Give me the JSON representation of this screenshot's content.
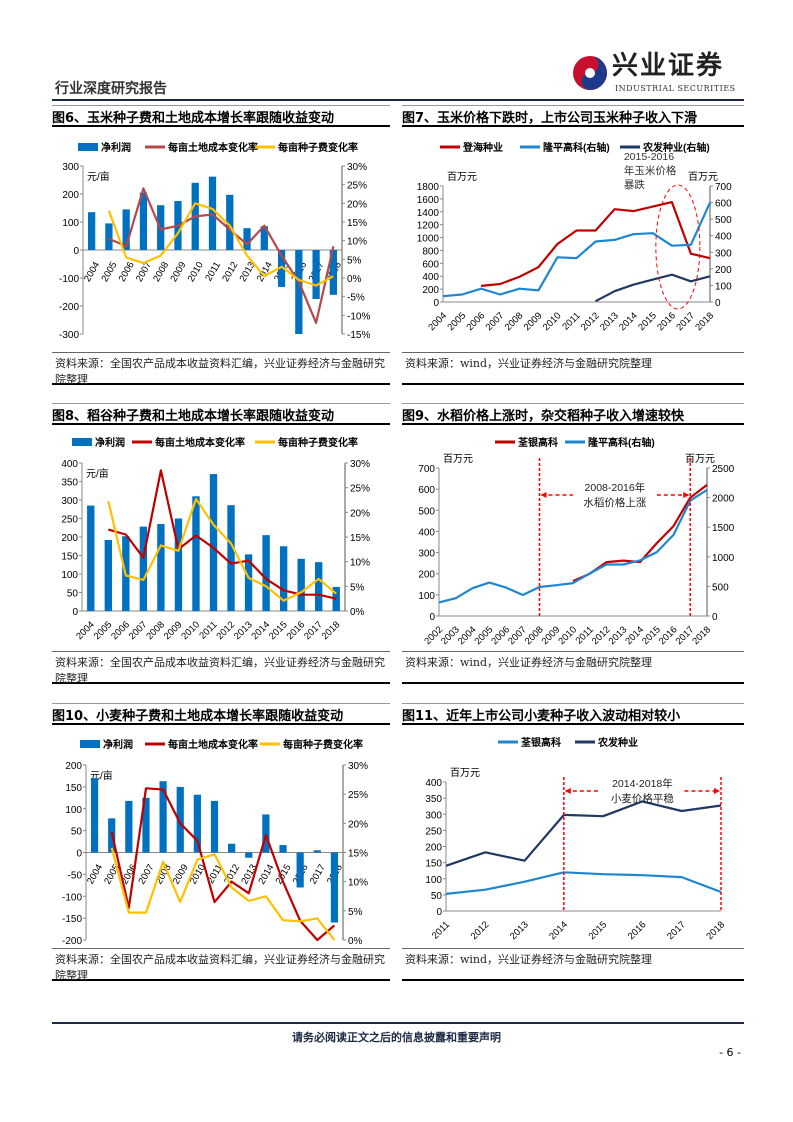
{
  "header": {
    "title": "行业深度研究报告",
    "logo_cn": "兴业证券",
    "logo_en": "INDUSTRIAL SECURITIES"
  },
  "footer": {
    "disclaimer": "请务必阅读正文之后的信息披露和重要声明",
    "page": "- 6 -"
  },
  "colors": {
    "bar": "#0070c0",
    "land_brown": "#b5484a",
    "red": "#c00000",
    "yellow": "#ffc000",
    "light_blue": "#1f86d0",
    "navy": "#1f3864",
    "annotation": "#ff0000"
  },
  "figures": [
    {
      "title": "图6、玉米种子费和土地成本增长率跟随收益变动",
      "source": "资料来源：全国农产品成本收益资料汇编，兴业证券经济与金融研究院整理",
      "chart_data": {
        "type": "bar+line",
        "categories": [
          "2004",
          "2005",
          "2006",
          "2007",
          "2008",
          "2009",
          "2010",
          "2011",
          "2012",
          "2013",
          "2014",
          "2015",
          "2016",
          "2017",
          "2018"
        ],
        "left_unit": "元/亩",
        "left_ticks": [
          "-300",
          "-200",
          "-100",
          "0",
          "100",
          "200",
          "300"
        ],
        "ylim": [
          -300,
          300
        ],
        "right_ticks": [
          "-15%",
          "-10%",
          "-5%",
          "0%",
          "5%",
          "10%",
          "15%",
          "20%",
          "25%",
          "30%"
        ],
        "y2lim": [
          -15,
          30
        ],
        "series": [
          {
            "name": "净利润",
            "kind": "bar",
            "axis": "left",
            "color": "#0070c0",
            "values": [
              135,
              95,
              145,
              205,
              160,
              175,
              240,
              262,
              197,
              78,
              85,
              -132,
              -300,
              -175,
              -160
            ]
          },
          {
            "name": "每亩土地成本变化率",
            "kind": "line",
            "axis": "right",
            "color": "#b5484a",
            "values": [
              null,
              10.5,
              8.5,
              24,
              13,
              14,
              16.5,
              17,
              13,
              9,
              14,
              6,
              -1,
              -12,
              8.5
            ]
          },
          {
            "name": "每亩种子费变化率",
            "kind": "line",
            "axis": "right",
            "color": "#ffc000",
            "values": [
              null,
              18,
              5.5,
              4,
              6,
              12,
              20,
              18.5,
              14,
              6,
              0.5,
              3,
              -0.5,
              -2,
              0.5
            ]
          }
        ]
      }
    },
    {
      "title": "图7、玉米价格下跌时，上市公司玉米种子收入下滑",
      "source": "资料来源：wind，兴业证券经济与金融研究院整理",
      "chart_data": {
        "type": "line",
        "categories": [
          "2004",
          "2005",
          "2006",
          "2007",
          "2008",
          "2009",
          "2010",
          "2011",
          "2012",
          "2013",
          "2014",
          "2015",
          "2016",
          "2017",
          "2018"
        ],
        "left_unit": "百万元",
        "right_unit": "百万元",
        "left_ticks": [
          "0",
          "200",
          "400",
          "600",
          "800",
          "1000",
          "1200",
          "1400",
          "1600",
          "1800"
        ],
        "ylim": [
          0,
          1800
        ],
        "right_ticks": [
          "0",
          "100",
          "200",
          "300",
          "400",
          "500",
          "600",
          "700"
        ],
        "y2lim": [
          0,
          700
        ],
        "annotation": {
          "text": [
            "2015-2016",
            "年玉米价格",
            "暴跌"
          ],
          "category": "2016",
          "shape": "dashed-ellipse"
        },
        "series": [
          {
            "name": "登海种业",
            "kind": "line",
            "axis": "left",
            "color": "#c00000",
            "values": [
              null,
              null,
              250,
              280,
              390,
              540,
              900,
              1110,
              1110,
              1440,
              1410,
              1480,
              1550,
              750,
              680
            ]
          },
          {
            "name": "隆平高科(右轴)",
            "kind": "line",
            "axis": "right",
            "color": "#1f86d0",
            "values": [
              35,
              45,
              80,
              45,
              80,
              70,
              270,
              265,
              365,
              375,
              410,
              415,
              340,
              345,
              600
            ]
          },
          {
            "name": "农发种业(右轴)",
            "kind": "line",
            "axis": "right",
            "color": "#1f3864",
            "values": [
              null,
              null,
              null,
              null,
              null,
              null,
              null,
              null,
              5,
              65,
              105,
              135,
              165,
              125,
              155
            ]
          }
        ]
      }
    },
    {
      "title": "图8、稻谷种子费和土地成本增长率跟随收益变动",
      "source": "资料来源：全国农产品成本收益资料汇编，兴业证券经济与金融研究院整理",
      "chart_data": {
        "type": "bar+line",
        "categories": [
          "2004",
          "2005",
          "2006",
          "2007",
          "2008",
          "2009",
          "2010",
          "2011",
          "2012",
          "2013",
          "2014",
          "2015",
          "2016",
          "2017",
          "2018"
        ],
        "left_unit": "元/亩",
        "left_ticks": [
          "0",
          "50",
          "100",
          "150",
          "200",
          "250",
          "300",
          "350",
          "400"
        ],
        "ylim": [
          0,
          400
        ],
        "right_ticks": [
          "0%",
          "5%",
          "10%",
          "15%",
          "20%",
          "25%",
          "30%"
        ],
        "y2lim": [
          0,
          30
        ],
        "series": [
          {
            "name": "净利润",
            "kind": "bar",
            "axis": "left",
            "color": "#0070c0",
            "values": [
              285,
              192,
              202,
              228,
              235,
              250,
              310,
              370,
              286,
              153,
              205,
              175,
              141,
              132,
              65
            ]
          },
          {
            "name": "每亩土地成本变化率",
            "kind": "line",
            "axis": "right",
            "color": "#c00000",
            "values": [
              null,
              16.5,
              15.5,
              10.8,
              28.5,
              12.5,
              15.3,
              12.8,
              9.6,
              10.2,
              6.5,
              4.2,
              3.3,
              3.3,
              2.5
            ]
          },
          {
            "name": "每亩种子费变化率",
            "kind": "line",
            "axis": "right",
            "color": "#ffc000",
            "values": [
              null,
              22.3,
              7.2,
              6.3,
              13.3,
              12.2,
              22.7,
              17.5,
              13.7,
              6.7,
              5,
              2.1,
              3.8,
              6.5,
              3.5
            ]
          }
        ]
      }
    },
    {
      "title": "图9、水稻价格上涨时，杂交稻种子收入增速较快",
      "source": "资料来源：wind，兴业证券经济与金融研究院整理",
      "chart_data": {
        "type": "line",
        "categories": [
          "2002",
          "2003",
          "2004",
          "2005",
          "2006",
          "2007",
          "2008",
          "2009",
          "2010",
          "2011",
          "2012",
          "2013",
          "2014",
          "2015",
          "2016",
          "2017",
          "2018"
        ],
        "left_unit": "百万元",
        "right_unit": "百万元",
        "left_ticks": [
          "0",
          "100",
          "200",
          "300",
          "400",
          "500",
          "600",
          "700"
        ],
        "ylim": [
          0,
          700
        ],
        "right_ticks": [
          "0",
          "500",
          "1000",
          "1500",
          "2000",
          "2500"
        ],
        "y2lim": [
          0,
          2500
        ],
        "annotation": {
          "text": [
            "2008-2016年",
            "水稻价格上涨"
          ],
          "from": "2008",
          "to": "2017",
          "shape": "dashed-arrows"
        },
        "series": [
          {
            "name": "荃银高科",
            "kind": "line",
            "axis": "left",
            "color": "#c00000",
            "values": [
              null,
              null,
              null,
              null,
              null,
              null,
              null,
              null,
              165,
              200,
              255,
              262,
              255,
              345,
              425,
              560,
              620
            ]
          },
          {
            "name": "隆平高科(右轴)",
            "kind": "line",
            "axis": "right",
            "color": "#1f86d0",
            "values": [
              230,
              300,
              470,
              565,
              480,
              355,
              490,
              520,
              555,
              720,
              870,
              870,
              940,
              1080,
              1370,
              1950,
              2130
            ]
          }
        ]
      }
    },
    {
      "title": "图10、小麦种子费和土地成本增长率跟随收益变动",
      "source": "资料来源：全国农产品成本收益资料汇编，兴业证券经济与金融研究院整理",
      "chart_data": {
        "type": "bar+line",
        "categories": [
          "2004",
          "2005",
          "2006",
          "2007",
          "2008",
          "2009",
          "2010",
          "2011",
          "2012",
          "2013",
          "2014",
          "2015",
          "2016",
          "2017",
          "2018"
        ],
        "left_unit": "元/亩",
        "left_ticks": [
          "-200",
          "-150",
          "-100",
          "-50",
          "0",
          "50",
          "100",
          "150",
          "200"
        ],
        "ylim": [
          -200,
          200
        ],
        "right_ticks": [
          "0%",
          "5%",
          "10%",
          "15%",
          "20%",
          "25%",
          "30%"
        ],
        "y2lim": [
          0,
          30
        ],
        "series": [
          {
            "name": "净利润",
            "kind": "bar",
            "axis": "left",
            "color": "#0070c0",
            "values": [
              170,
              78,
              118,
              125,
              163,
              150,
              132,
              118,
              20,
              -12,
              87,
              17,
              -80,
              5,
              -160
            ]
          },
          {
            "name": "每亩土地成本变化率",
            "kind": "line",
            "axis": "right",
            "color": "#c00000",
            "values": [
              null,
              18.5,
              5.5,
              26,
              25.8,
              20,
              17,
              6.5,
              10,
              8,
              18,
              10,
              3.3,
              0,
              2.5
            ]
          },
          {
            "name": "每亩种子费变化率",
            "kind": "line",
            "axis": "right",
            "color": "#ffc000",
            "values": [
              null,
              15.8,
              4.7,
              4.7,
              13.4,
              6.5,
              13.8,
              14.7,
              9,
              6.7,
              7.5,
              3.4,
              3.2,
              3.7,
              0
            ]
          }
        ]
      }
    },
    {
      "title": "图11、近年上市公司小麦种子收入波动相对较小",
      "source": "资料来源：wind，兴业证券经济与金融研究院整理",
      "chart_data": {
        "type": "line",
        "categories": [
          "2011",
          "2012",
          "2013",
          "2014",
          "2015",
          "2016",
          "2017",
          "2018"
        ],
        "left_unit": "百万元",
        "left_ticks": [
          "0",
          "50",
          "100",
          "150",
          "200",
          "250",
          "300",
          "350",
          "400"
        ],
        "ylim": [
          0,
          400
        ],
        "annotation": {
          "text": [
            "2014-2018年",
            "小麦价格平稳"
          ],
          "from": "2014",
          "to": "2018",
          "shape": "dashed-arrows"
        },
        "series": [
          {
            "name": "荃银高科",
            "kind": "line",
            "axis": "left",
            "color": "#1f86d0",
            "values": [
              53,
              66,
              91,
              120,
              114,
              111,
              105,
              59
            ]
          },
          {
            "name": "农发种业",
            "kind": "line",
            "axis": "left",
            "color": "#1f3864",
            "values": [
              140,
              182,
              156,
              298,
              294,
              340,
              310,
              327
            ]
          }
        ]
      }
    }
  ]
}
